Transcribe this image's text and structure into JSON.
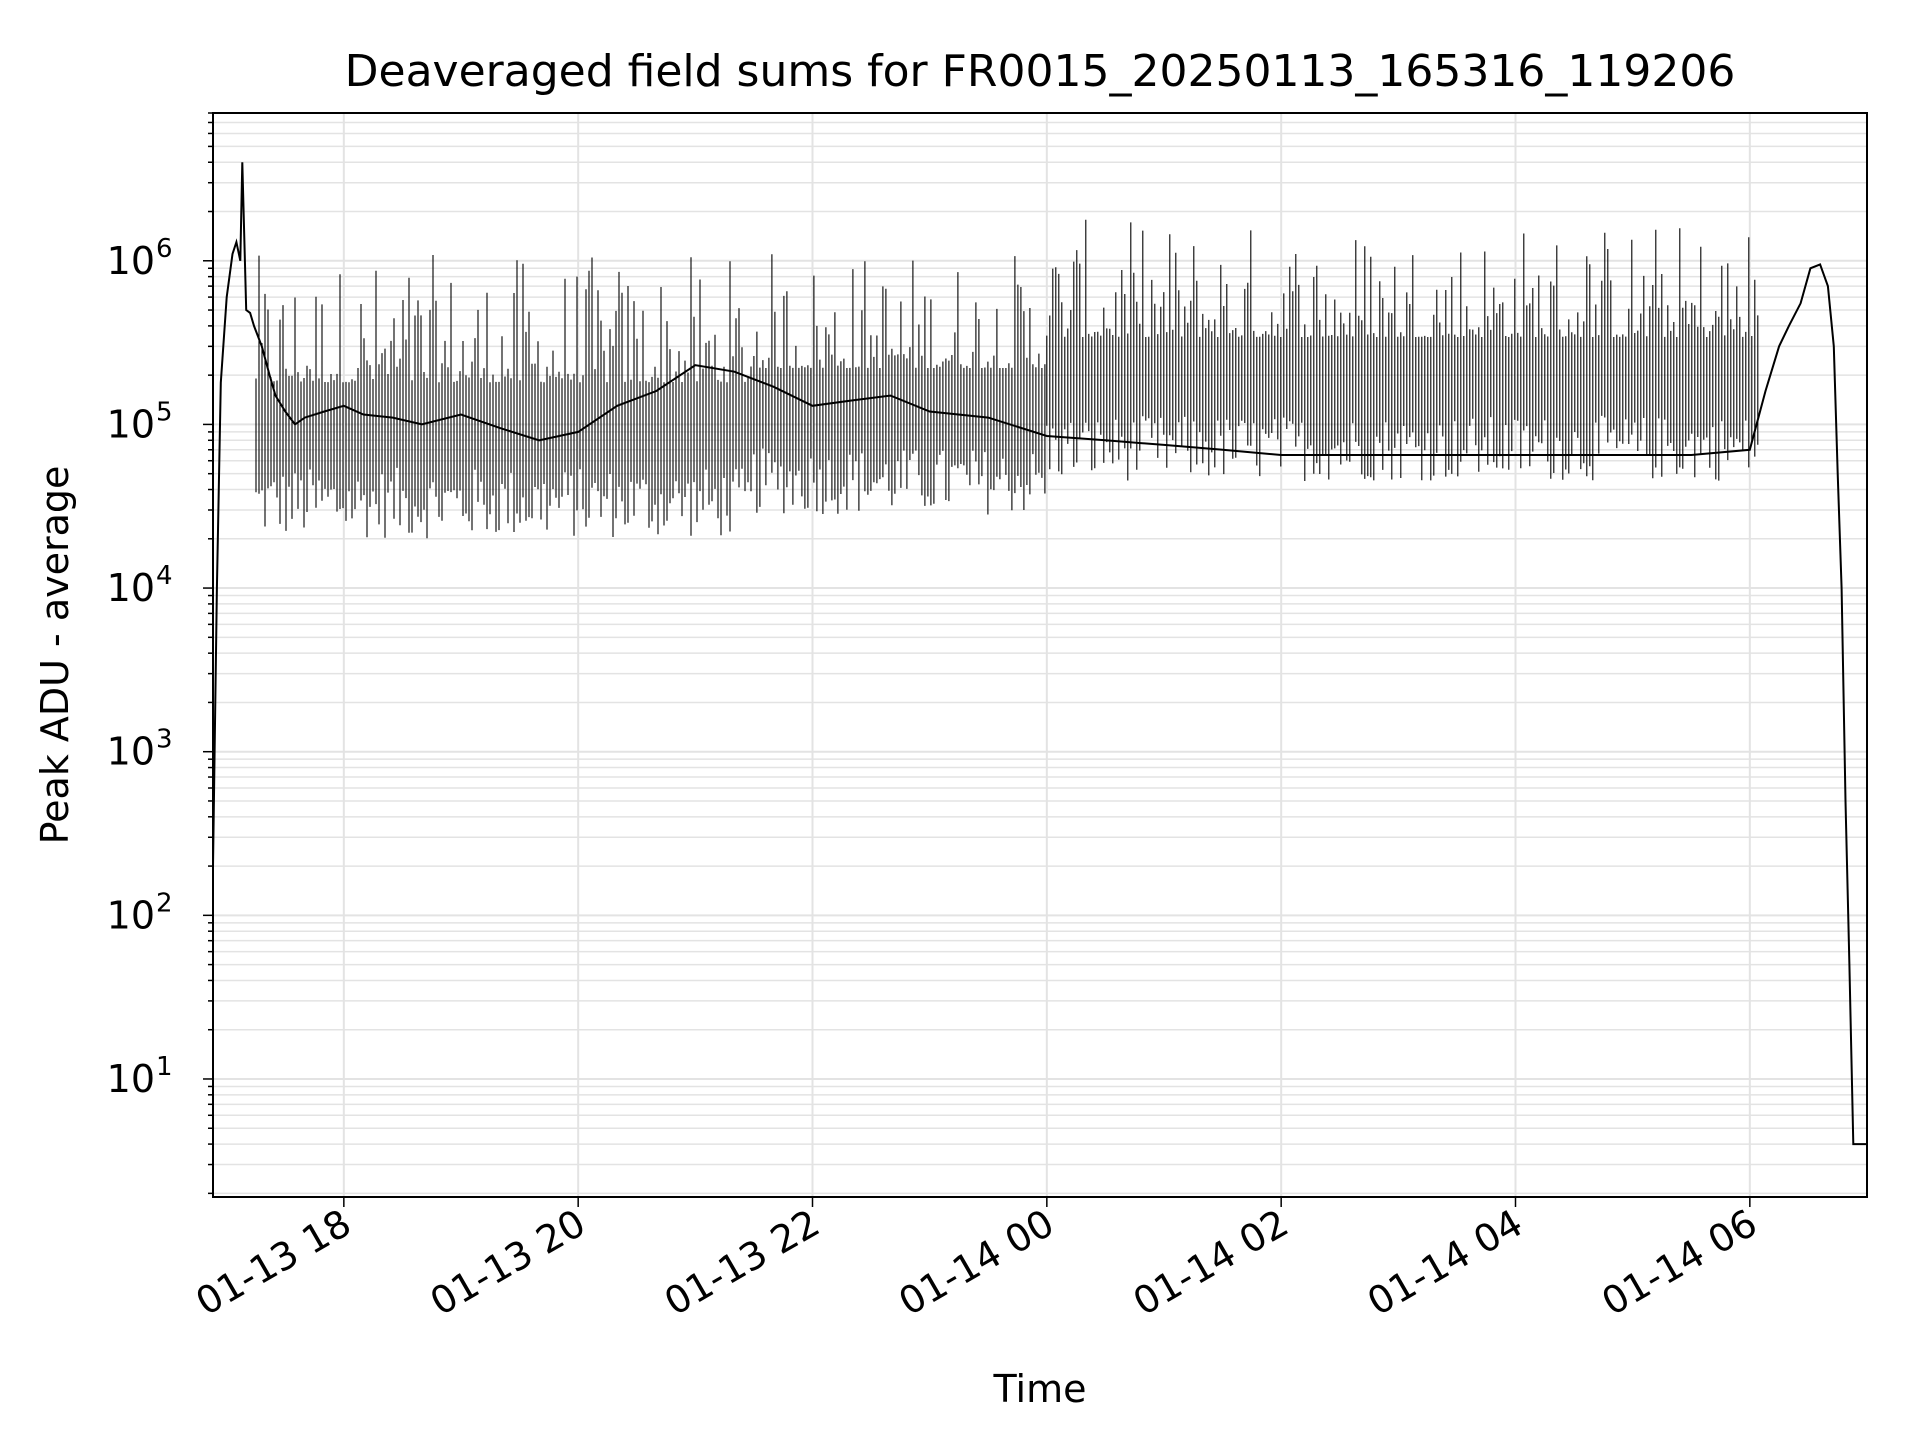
{
  "chart_data": {
    "type": "line",
    "title": "Deaveraged field sums for FR0015_20250113_165316_119206",
    "xlabel": "Time",
    "ylabel": "Peak ADU - average",
    "xlim": [
      "2025-01-13 16:53",
      "2025-01-14 07:00"
    ],
    "ylim": [
      1.9,
      8000000
    ],
    "yscale": "log",
    "grid": true,
    "line_color": "#000000",
    "grid_color": "#e3e3e3",
    "x_ticks": [
      {
        "label": "01-13 18",
        "x": "2025-01-13 18:00"
      },
      {
        "label": "01-13 20",
        "x": "2025-01-13 20:00"
      },
      {
        "label": "01-13 22",
        "x": "2025-01-13 22:00"
      },
      {
        "label": "01-14 00",
        "x": "2025-01-14 00:00"
      },
      {
        "label": "01-14 02",
        "x": "2025-01-14 02:00"
      },
      {
        "label": "01-14 04",
        "x": "2025-01-14 04:00"
      },
      {
        "label": "01-14 06",
        "x": "2025-01-14 06:00"
      }
    ],
    "y_ticks": [
      {
        "base": "10",
        "exp": "1",
        "value": 10
      },
      {
        "base": "10",
        "exp": "2",
        "value": 100
      },
      {
        "base": "10",
        "exp": "3",
        "value": 1000
      },
      {
        "base": "10",
        "exp": "4",
        "value": 10000
      },
      {
        "base": "10",
        "exp": "5",
        "value": 100000
      },
      {
        "base": "10",
        "exp": "6",
        "value": 1000000
      }
    ],
    "series": [
      {
        "x": [
          "2025-01-13 16:53",
          "2025-01-13 16:55",
          "2025-01-13 16:57",
          "2025-01-13 17:00",
          "2025-01-13 17:03",
          "2025-01-13 17:05",
          "2025-01-13 17:07",
          "2025-01-13 17:08",
          "2025-01-13 17:10",
          "2025-01-13 17:12",
          "2025-01-13 17:14",
          "2025-01-13 17:18",
          "2025-01-13 17:22",
          "2025-01-13 17:25",
          "2025-01-13 17:30",
          "2025-01-13 17:35",
          "2025-01-13 17:40",
          "2025-01-13 17:50",
          "2025-01-13 18:00",
          "2025-01-13 18:10",
          "2025-01-13 18:25",
          "2025-01-13 18:40",
          "2025-01-13 19:00",
          "2025-01-13 19:20",
          "2025-01-13 19:40",
          "2025-01-13 20:00",
          "2025-01-13 20:20",
          "2025-01-13 20:40",
          "2025-01-13 21:00",
          "2025-01-13 21:20",
          "2025-01-13 21:40",
          "2025-01-13 22:00",
          "2025-01-13 22:20",
          "2025-01-13 22:40",
          "2025-01-13 23:00",
          "2025-01-13 23:30",
          "2025-01-14 00:00",
          "2025-01-14 00:30",
          "2025-01-14 01:00",
          "2025-01-14 01:30",
          "2025-01-14 02:00",
          "2025-01-14 02:30",
          "2025-01-14 03:00",
          "2025-01-14 03:30",
          "2025-01-14 04:00",
          "2025-01-14 04:30",
          "2025-01-14 05:00",
          "2025-01-14 05:30",
          "2025-01-14 06:00",
          "2025-01-14 06:08",
          "2025-01-14 06:15",
          "2025-01-14 06:20",
          "2025-01-14 06:26",
          "2025-01-14 06:31",
          "2025-01-14 06:36",
          "2025-01-14 06:40",
          "2025-01-14 06:43",
          "2025-01-14 06:45",
          "2025-01-14 06:47",
          "2025-01-14 06:49",
          "2025-01-14 06:51",
          "2025-01-14 06:53",
          "2025-01-14 06:54",
          "2025-01-14 06:58",
          "2025-01-14 07:00"
        ],
        "y": [
          200,
          10000,
          180000,
          600000,
          1100000,
          1300000,
          1000000,
          4000000,
          500000,
          480000,
          400000,
          300000,
          200000,
          150000,
          120000,
          100000,
          110000,
          120000,
          130000,
          115000,
          110000,
          100000,
          115000,
          95000,
          80000,
          90000,
          130000,
          160000,
          230000,
          210000,
          170000,
          130000,
          140000,
          150000,
          120000,
          110000,
          85000,
          80000,
          75000,
          70000,
          65000,
          65000,
          65000,
          65000,
          65000,
          65000,
          65000,
          65000,
          70000,
          160000,
          300000,
          400000,
          550000,
          900000,
          950000,
          700000,
          300000,
          50000,
          10000,
          500,
          50,
          4,
          4,
          4,
          4
        ]
      }
    ],
    "spike_bands": [
      {
        "start": "2025-01-13 17:15",
        "end": "2025-01-13 21:30",
        "low": 20000,
        "high": 1100000
      },
      {
        "start": "2025-01-13 21:30",
        "end": "2025-01-14 00:00",
        "low": 28000,
        "high": 1200000
      },
      {
        "start": "2025-01-14 00:00",
        "end": "2025-01-14 06:05",
        "low": 45000,
        "high": 1800000
      }
    ]
  }
}
